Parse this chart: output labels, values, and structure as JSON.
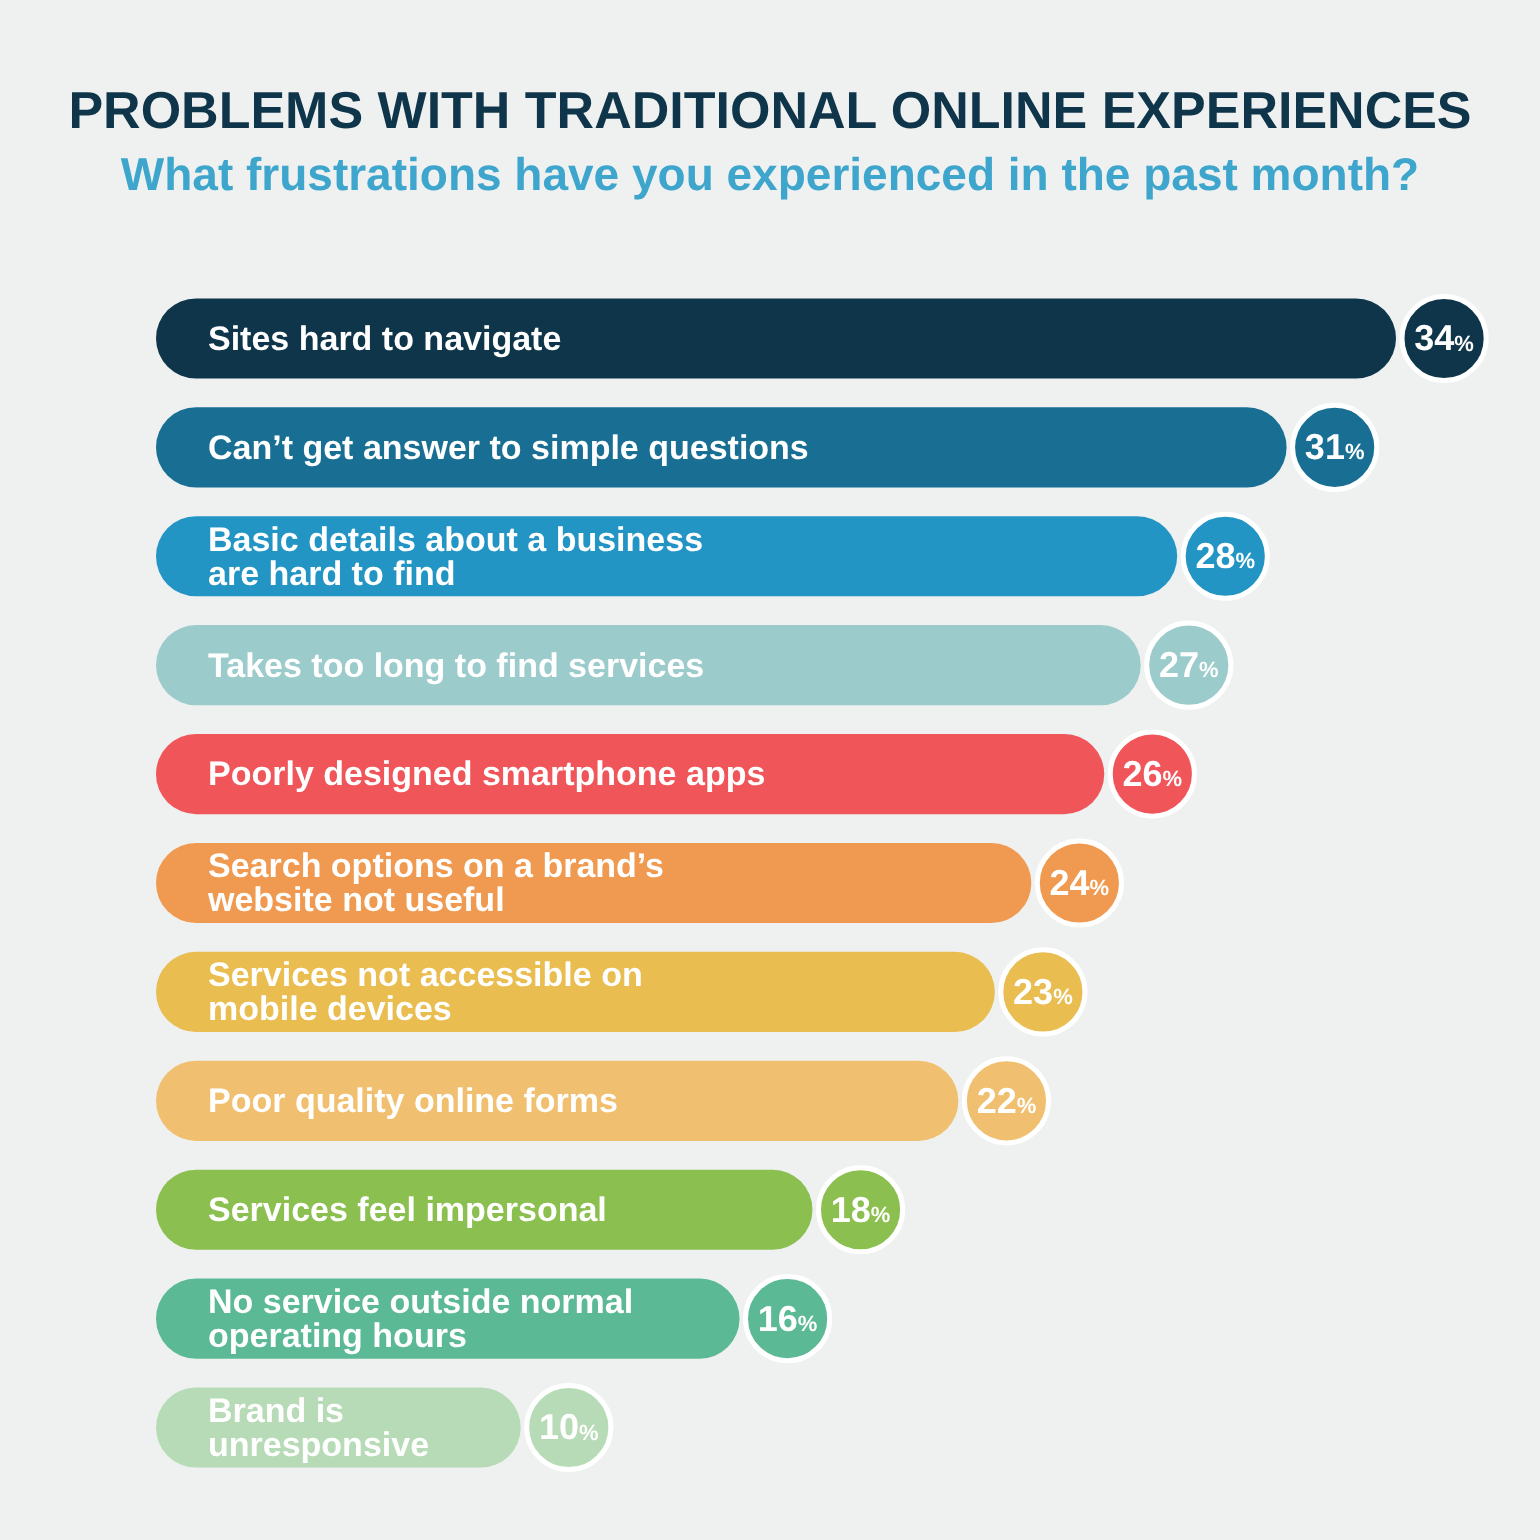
{
  "chart_data": {
    "type": "bar",
    "orientation": "horizontal",
    "title": "PROBLEMS WITH TRADITIONAL ONLINE EXPERIENCES",
    "subtitle": "What frustrations have you experienced in the past month?",
    "categories": [
      "Sites hard to navigate",
      "Can’t get answer to simple questions",
      "Basic details about a business are hard to find",
      "Takes too long to find services",
      "Poorly designed smartphone apps",
      "Search options on a brand’s website not useful",
      "Services not accessible on mobile devices",
      "Poor quality online forms",
      "Services feel impersonal",
      "No service outside normal operating hours",
      "Brand is unresponsive"
    ],
    "values": [
      34,
      31,
      28,
      27,
      26,
      24,
      23,
      22,
      18,
      16,
      10
    ],
    "colors": [
      "#0e3549",
      "#186f93",
      "#2295c4",
      "#9ccbcc",
      "#f05559",
      "#ef9a50",
      "#e9bd50",
      "#f0c070",
      "#8bbf4f",
      "#5bb996",
      "#b6dbb6"
    ],
    "value_labels": [
      "34%",
      "31%",
      "28%",
      "27%",
      "26%",
      "24%",
      "23%",
      "22%",
      "18%",
      "16%",
      "10%"
    ],
    "tick_labels": "y"
  }
}
